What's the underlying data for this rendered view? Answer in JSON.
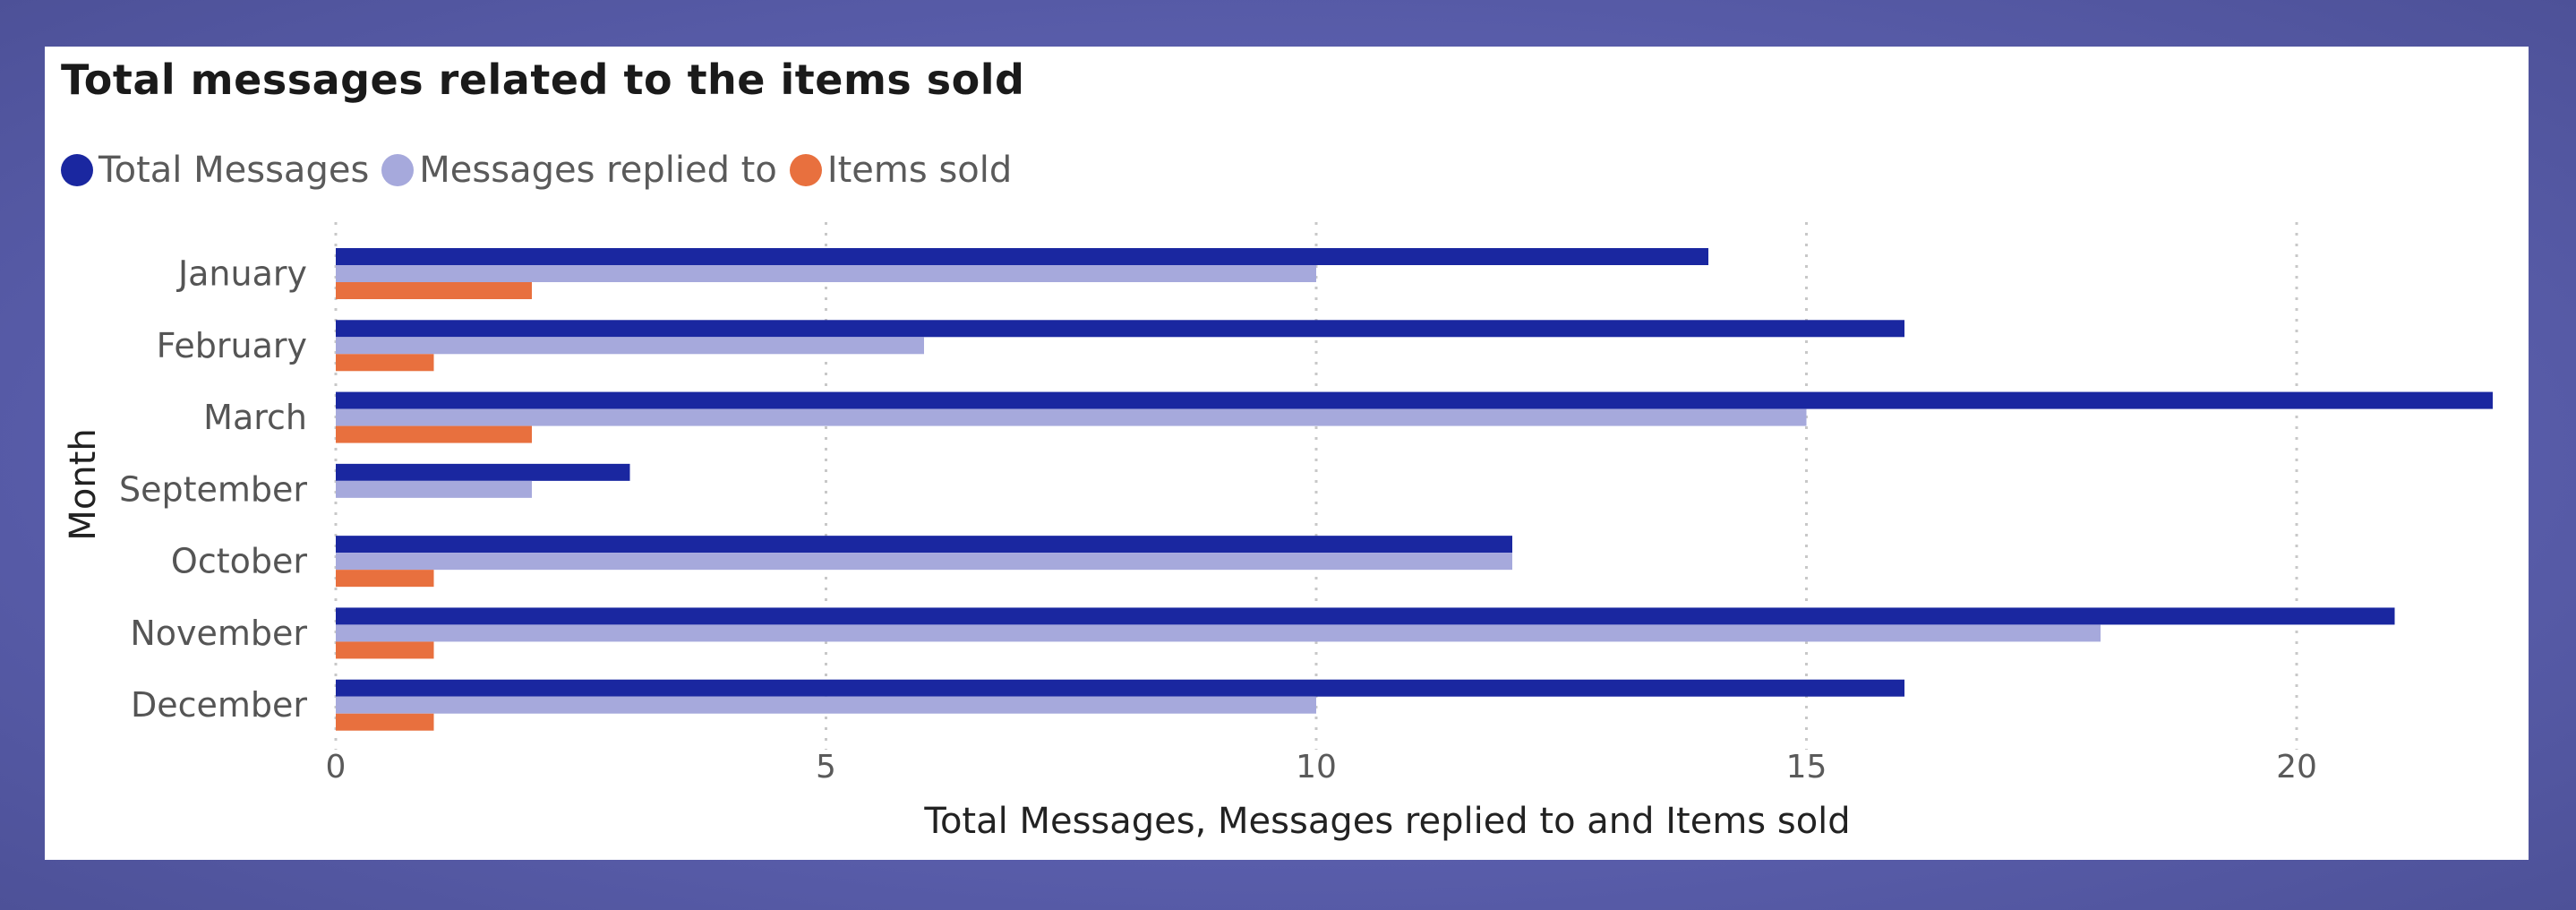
{
  "chart_data": {
    "type": "bar",
    "orientation": "horizontal",
    "title": "Total messages related to the items sold",
    "xlabel": "Total Messages, Messages replied to and Items sold",
    "ylabel": "Month",
    "categories": [
      "January",
      "February",
      "March",
      "September",
      "October",
      "November",
      "December"
    ],
    "series": [
      {
        "name": "Total Messages",
        "color": "#1a27a0",
        "values": [
          14,
          16,
          22,
          3,
          12,
          21,
          16
        ]
      },
      {
        "name": "Messages replied to",
        "color": "#a6a9dc",
        "values": [
          10,
          6,
          15,
          2,
          12,
          18,
          10
        ]
      },
      {
        "name": "Items sold",
        "color": "#e8703e",
        "values": [
          2,
          1,
          2,
          0,
          1,
          1,
          1
        ]
      }
    ],
    "xlim": [
      0,
      22
    ],
    "xticks": [
      0,
      5,
      10,
      15,
      20
    ],
    "grid": true,
    "legend_position": "top-left"
  }
}
